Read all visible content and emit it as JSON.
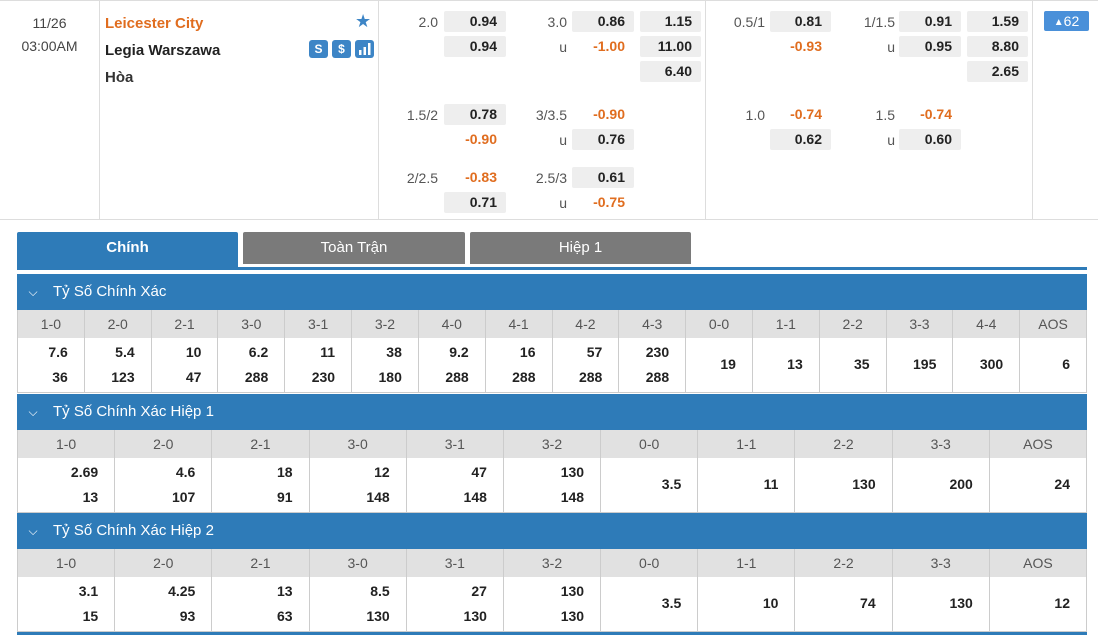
{
  "match": {
    "date": "11/26",
    "time": "03:00AM",
    "home": "Leicester City",
    "away": "Legia Warszawa",
    "draw": "Hòa",
    "icon_s": "S",
    "icon_d": "$",
    "more_count": "62",
    "more_arrow": "▲"
  },
  "odds": {
    "ft_hdp": {
      "line": "2.0",
      "home": "0.94",
      "away": "0.94"
    },
    "ft_ou": {
      "line": "3.0",
      "over": "0.86",
      "u": "u",
      "under": "-1.00"
    },
    "ft_1x2": {
      "home": "1.15",
      "away": "11.00",
      "draw": "6.40"
    },
    "ht_hdp": {
      "line": "0.5/1",
      "home": "0.81",
      "away": "-0.93"
    },
    "ht_ou": {
      "line": "1/1.5",
      "over": "0.91",
      "u": "u",
      "under": "0.95"
    },
    "ht_1x2": {
      "home": "1.59",
      "away": "8.80",
      "draw": "2.65"
    },
    "ft_hdp2": {
      "line": "1.5/2",
      "home": "0.78",
      "away": "-0.90"
    },
    "ft_ou2": {
      "line": "3/3.5",
      "over": "-0.90",
      "u": "u",
      "under": "0.76"
    },
    "ht_hdp2": {
      "line": "1.0",
      "home": "-0.74",
      "away": "0.62"
    },
    "ht_ou2": {
      "line": "1.5",
      "over": "-0.74",
      "u": "u",
      "under": "0.60"
    },
    "ft_hdp3": {
      "line": "2/2.5",
      "home": "-0.83",
      "away": "0.71"
    },
    "ft_ou3": {
      "line": "2.5/3",
      "over": "0.61",
      "u": "u",
      "under": "-0.75"
    }
  },
  "tabs": [
    "Chính",
    "Toàn Trận",
    "Hiệp 1"
  ],
  "sections": [
    {
      "title": "Tỷ Số Chính Xác",
      "chevron": "⌵",
      "headers": [
        "1-0",
        "2-0",
        "2-1",
        "3-0",
        "3-1",
        "3-2",
        "4-0",
        "4-1",
        "4-2",
        "4-3",
        "0-0",
        "1-1",
        "2-2",
        "3-3",
        "4-4",
        "AOS"
      ],
      "top": [
        "7.6",
        "5.4",
        "10",
        "6.2",
        "11",
        "38",
        "9.2",
        "16",
        "57",
        "230"
      ],
      "bottom": [
        "36",
        "123",
        "47",
        "288",
        "230",
        "180",
        "288",
        "288",
        "288",
        "288"
      ],
      "single": [
        "19",
        "13",
        "35",
        "195",
        "300",
        "6"
      ]
    },
    {
      "title": "Tỷ Số Chính Xác Hiệp 1",
      "chevron": "⌵",
      "headers": [
        "1-0",
        "2-0",
        "2-1",
        "3-0",
        "3-1",
        "3-2",
        "0-0",
        "1-1",
        "2-2",
        "3-3",
        "AOS"
      ],
      "top": [
        "2.69",
        "4.6",
        "18",
        "12",
        "47",
        "130"
      ],
      "bottom": [
        "13",
        "107",
        "91",
        "148",
        "148",
        "148"
      ],
      "single": [
        "3.5",
        "11",
        "130",
        "200",
        "24"
      ]
    },
    {
      "title": "Tỷ Số Chính Xác Hiệp 2",
      "chevron": "⌵",
      "headers": [
        "1-0",
        "2-0",
        "2-1",
        "3-0",
        "3-1",
        "3-2",
        "0-0",
        "1-1",
        "2-2",
        "3-3",
        "AOS"
      ],
      "top": [
        "3.1",
        "4.25",
        "13",
        "8.5",
        "27",
        "130"
      ],
      "bottom": [
        "15",
        "93",
        "63",
        "130",
        "130",
        "130"
      ],
      "single": [
        "3.5",
        "10",
        "74",
        "130",
        "12"
      ]
    }
  ]
}
